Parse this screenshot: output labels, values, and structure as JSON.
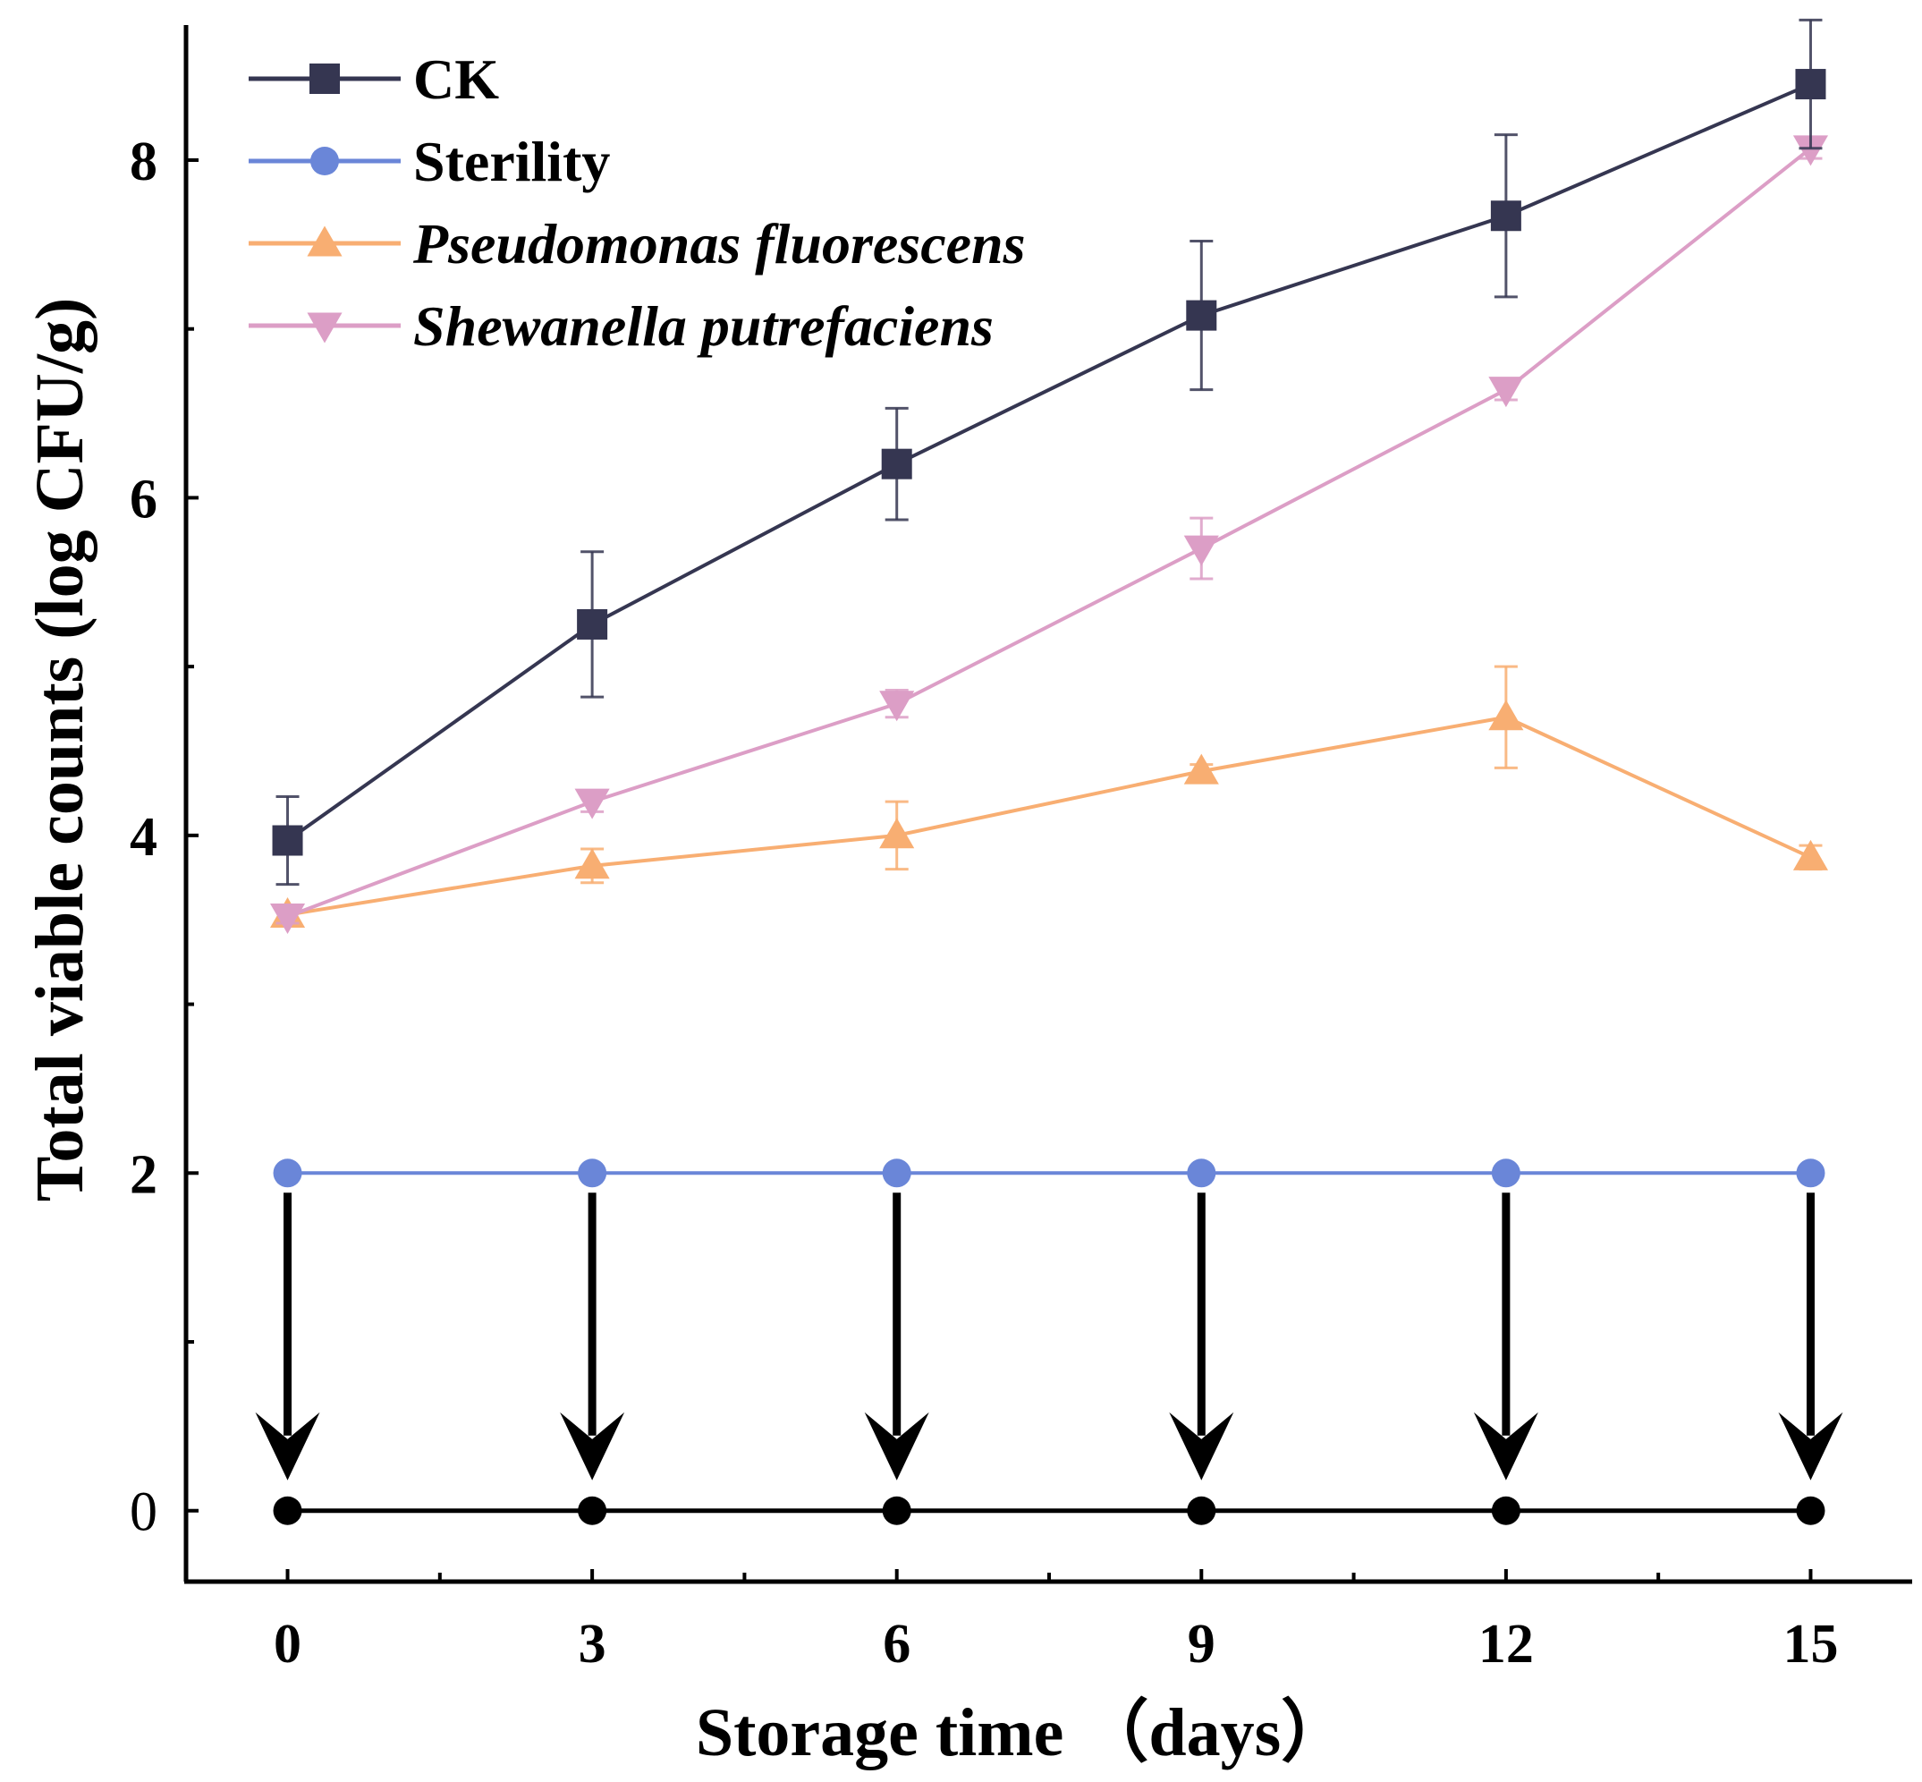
{
  "chart_data": {
    "type": "line",
    "title": "",
    "xlabel": "Storage time （days）",
    "ylabel": "Total viable counts (log CFU/g)",
    "x": [
      0,
      3,
      6,
      9,
      12,
      15
    ],
    "x_ticks": [
      "0",
      "3",
      "6",
      "9",
      "12",
      "15"
    ],
    "xlim": [
      -1,
      16
    ],
    "y_ticks": [
      "0",
      "2",
      "4",
      "6",
      "8"
    ],
    "ylim": [
      -0.42,
      8.8
    ],
    "grid": false,
    "legend_position": "top-left",
    "series": [
      {
        "name": "CK",
        "italic": false,
        "color": "#353651",
        "marker": "square",
        "values": [
          3.97,
          5.25,
          6.2,
          7.08,
          7.67,
          8.45
        ],
        "errors": [
          0.26,
          0.43,
          0.33,
          0.44,
          0.48,
          0.38
        ]
      },
      {
        "name": "Sterility",
        "italic": false,
        "color": "#6a86d8",
        "marker": "circle",
        "values": [
          2,
          2,
          2,
          2,
          2,
          2
        ],
        "errors": [
          0,
          0,
          0,
          0,
          0,
          0
        ]
      },
      {
        "name": "Pseudomonas fluorescens",
        "italic": true,
        "color": "#f8ae72",
        "marker": "triangle-up",
        "values": [
          3.53,
          3.82,
          4.0,
          4.38,
          4.7,
          3.87
        ],
        "errors": [
          0.05,
          0.1,
          0.2,
          0.04,
          0.3,
          0.07
        ]
      },
      {
        "name": "Shewanella putrefaciens",
        "italic": true,
        "color": "#dc9ec6",
        "marker": "triangle-down",
        "values": [
          3.52,
          4.2,
          4.78,
          5.7,
          6.64,
          8.07
        ],
        "errors": [
          0.04,
          0.06,
          0.08,
          0.18,
          0.06,
          0.06
        ]
      }
    ],
    "zero_line": {
      "value": 0,
      "color": "#000000",
      "marker": "circle"
    },
    "annotations": [
      {
        "type": "arrow",
        "from_value": 2,
        "to_value": 0,
        "at_each_x": true,
        "color": "#000000"
      }
    ]
  }
}
